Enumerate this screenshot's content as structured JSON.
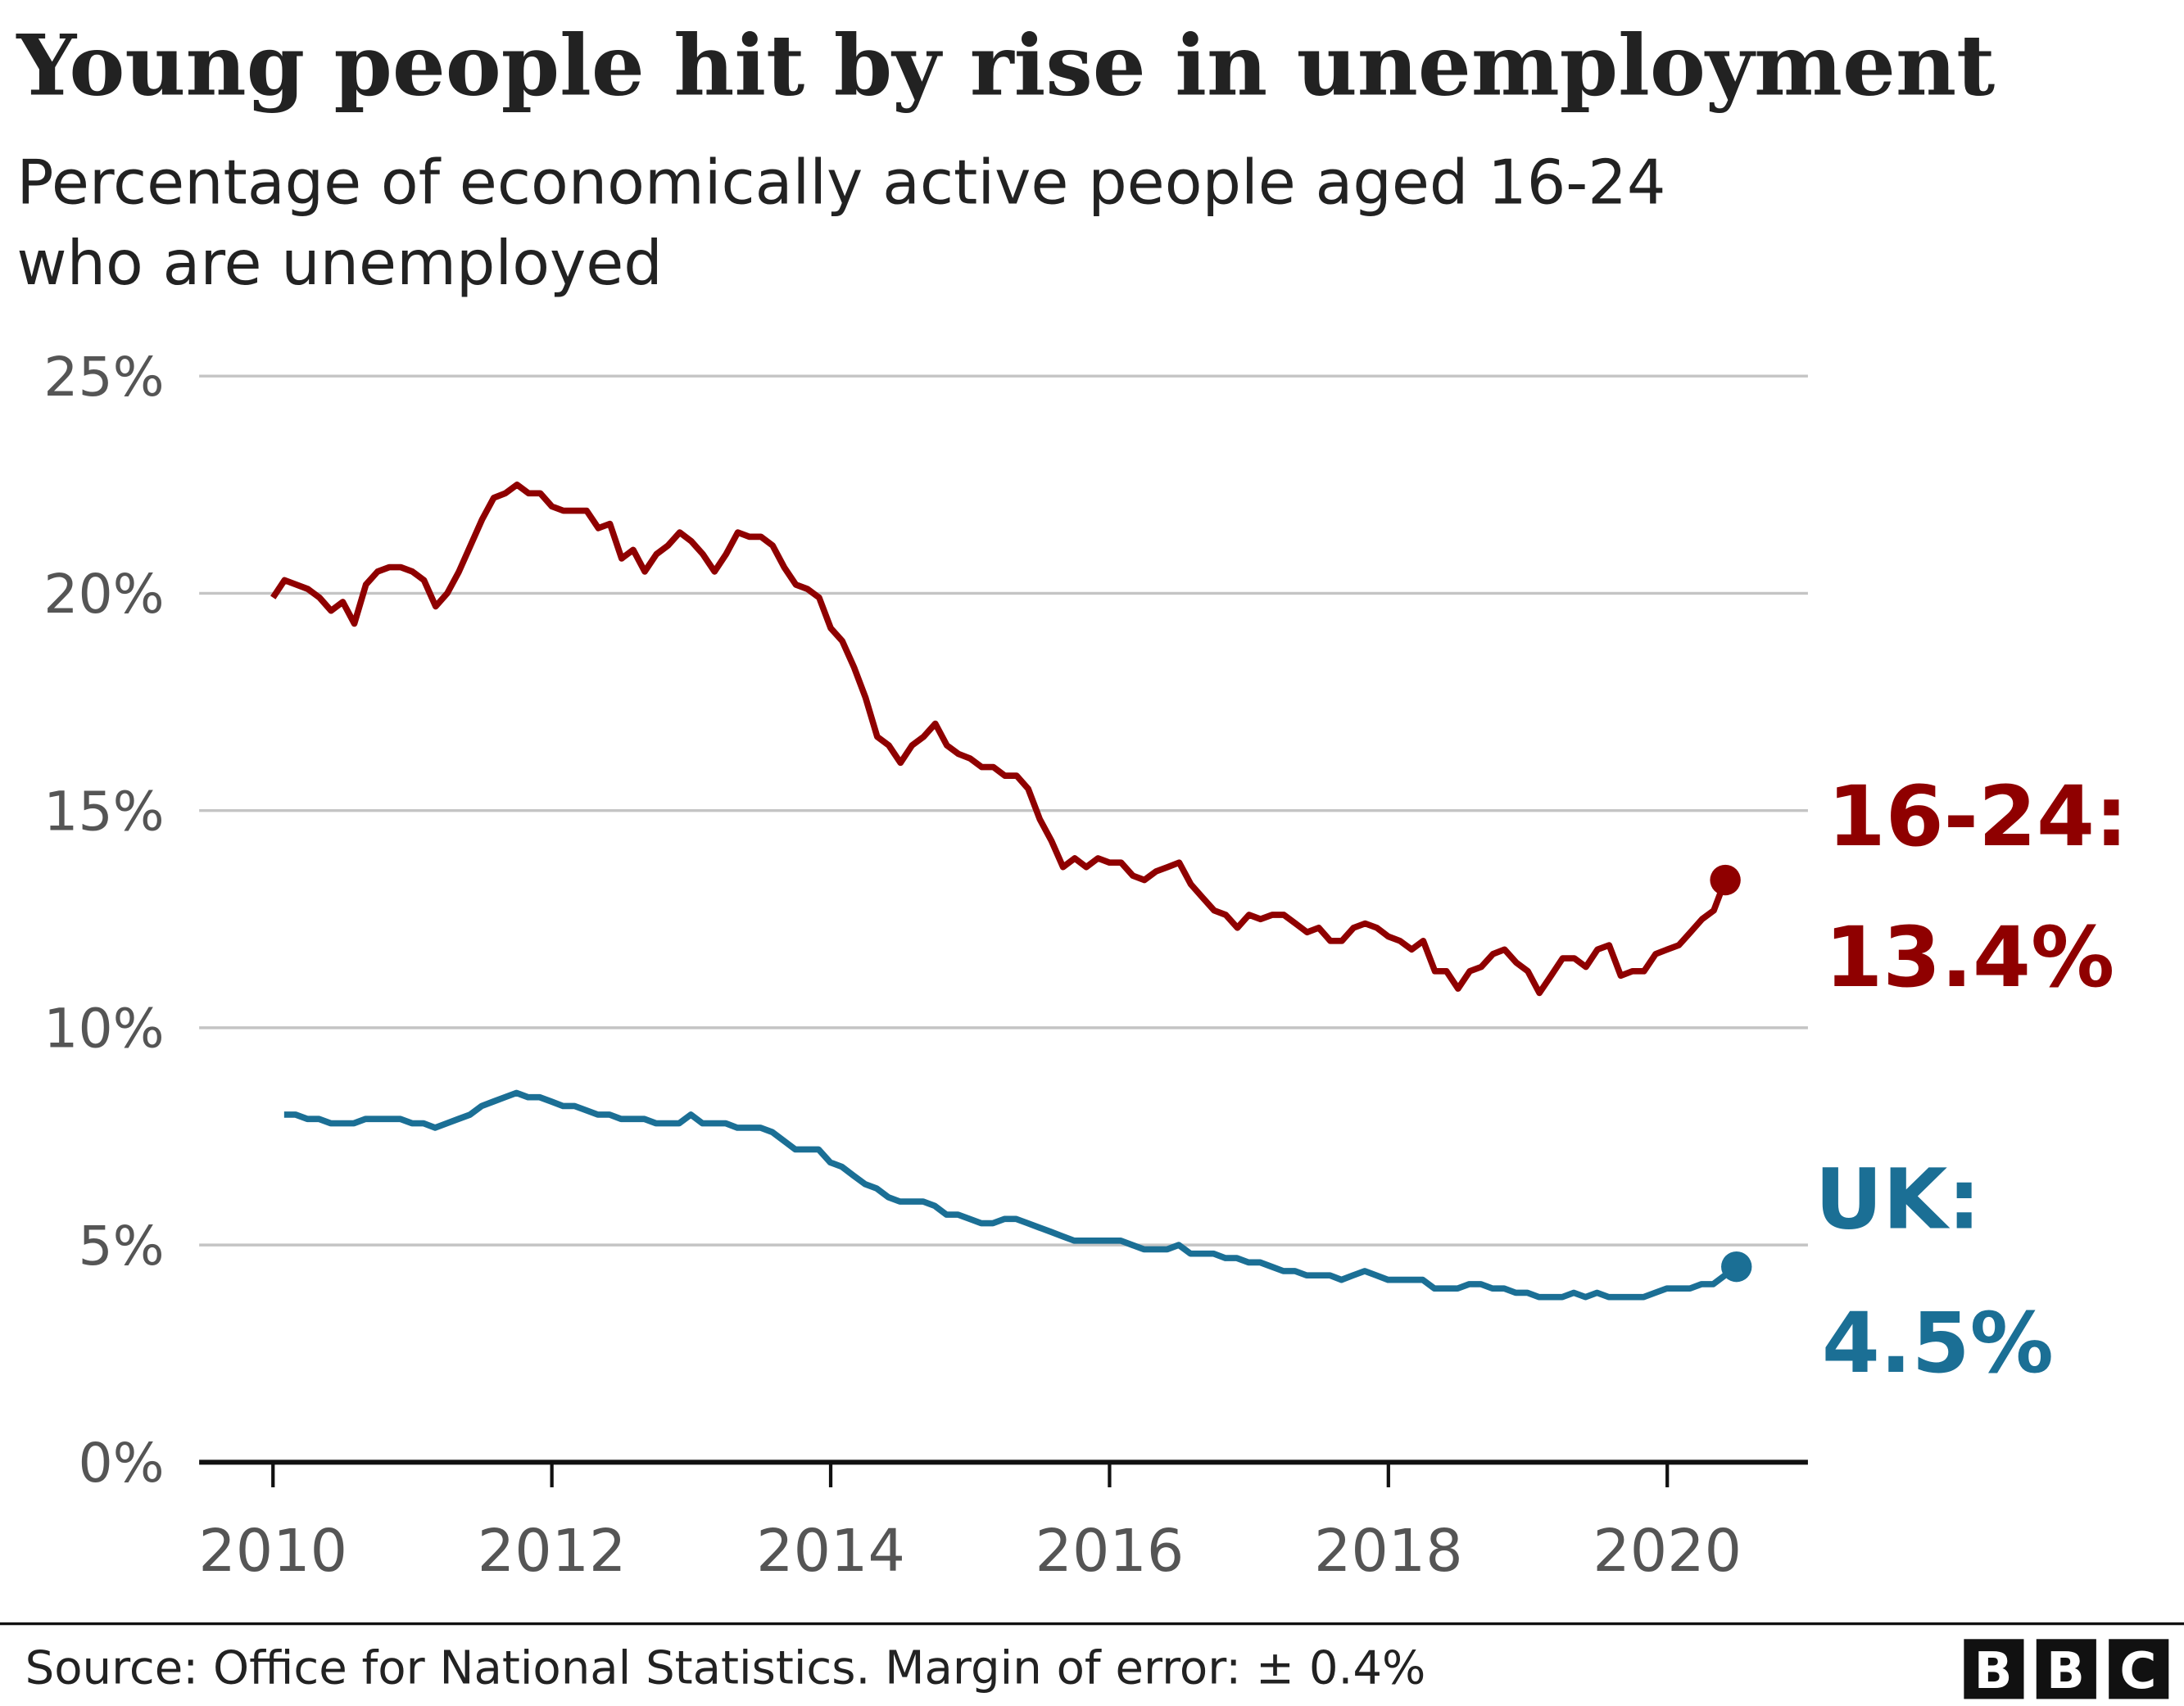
{
  "chart_data": {
    "type": "line",
    "title": "Young people hit by rise in unemployment",
    "subtitle": [
      "Percentage of economically active people aged 16-24",
      "who are unemployed"
    ],
    "xlabel": "",
    "ylabel": "",
    "xlim": [
      2010,
      2021
    ],
    "ylim": [
      0,
      25
    ],
    "yticks": [
      0,
      5,
      10,
      15,
      20,
      25
    ],
    "ytick_labels": [
      "0%",
      "5%",
      "10%",
      "15%",
      "20%",
      "25%"
    ],
    "xticks": [
      2010,
      2012,
      2014,
      2016,
      2018,
      2020
    ],
    "xtick_labels": [
      "2010",
      "2012",
      "2014",
      "2016",
      "2018",
      "2020"
    ],
    "grid": true,
    "series": [
      {
        "name": "16-24",
        "color": "#8f0000",
        "start_year": 2010.0,
        "step_months": 1,
        "values": [
          19.9,
          20.3,
          20.2,
          20.1,
          19.9,
          19.6,
          19.8,
          19.3,
          20.2,
          20.5,
          20.6,
          20.6,
          20.5,
          20.3,
          19.7,
          20.0,
          20.5,
          21.1,
          21.7,
          22.2,
          22.3,
          22.5,
          22.3,
          22.3,
          22.0,
          21.9,
          21.9,
          21.9,
          21.5,
          21.6,
          20.8,
          21.0,
          20.5,
          20.9,
          21.1,
          21.4,
          21.2,
          20.9,
          20.5,
          20.9,
          21.4,
          21.3,
          21.3,
          21.1,
          20.6,
          20.2,
          20.1,
          19.9,
          19.2,
          18.9,
          18.3,
          17.6,
          16.7,
          16.5,
          16.1,
          16.5,
          16.7,
          17.0,
          16.5,
          16.3,
          16.2,
          16.0,
          16.0,
          15.8,
          15.8,
          15.5,
          14.8,
          14.3,
          13.7,
          13.9,
          13.7,
          13.9,
          13.8,
          13.8,
          13.5,
          13.4,
          13.6,
          13.7,
          13.8,
          13.3,
          13.0,
          12.7,
          12.6,
          12.3,
          12.6,
          12.5,
          12.6,
          12.6,
          12.4,
          12.2,
          12.3,
          12.0,
          12.0,
          12.3,
          12.4,
          12.3,
          12.1,
          12.0,
          11.8,
          12.0,
          11.3,
          11.3,
          10.9,
          11.3,
          11.4,
          11.7,
          11.8,
          11.5,
          11.3,
          10.8,
          11.2,
          11.6,
          11.6,
          11.4,
          11.8,
          11.9,
          11.2,
          11.3,
          11.3,
          11.7,
          11.8,
          11.9,
          12.2,
          12.5,
          12.7,
          13.4
        ],
        "end_label": "16-24:",
        "end_value_label": "13.4%"
      },
      {
        "name": "UK",
        "color": "#1b6f95",
        "start_year": 2010.08,
        "step_months": 1,
        "values": [
          8.0,
          8.0,
          7.9,
          7.9,
          7.8,
          7.8,
          7.8,
          7.9,
          7.9,
          7.9,
          7.9,
          7.8,
          7.8,
          7.7,
          7.8,
          7.9,
          8.0,
          8.2,
          8.3,
          8.4,
          8.5,
          8.4,
          8.4,
          8.3,
          8.2,
          8.2,
          8.1,
          8.0,
          8.0,
          7.9,
          7.9,
          7.9,
          7.8,
          7.8,
          7.8,
          8.0,
          7.8,
          7.8,
          7.8,
          7.7,
          7.7,
          7.7,
          7.6,
          7.4,
          7.2,
          7.2,
          7.2,
          6.9,
          6.8,
          6.6,
          6.4,
          6.3,
          6.1,
          6.0,
          6.0,
          6.0,
          5.9,
          5.7,
          5.7,
          5.6,
          5.5,
          5.5,
          5.6,
          5.6,
          5.5,
          5.4,
          5.3,
          5.2,
          5.1,
          5.1,
          5.1,
          5.1,
          5.1,
          5.0,
          4.9,
          4.9,
          4.9,
          5.0,
          4.8,
          4.8,
          4.8,
          4.7,
          4.7,
          4.6,
          4.6,
          4.5,
          4.4,
          4.4,
          4.3,
          4.3,
          4.3,
          4.2,
          4.3,
          4.4,
          4.3,
          4.2,
          4.2,
          4.2,
          4.2,
          4.0,
          4.0,
          4.0,
          4.1,
          4.1,
          4.0,
          4.0,
          3.9,
          3.9,
          3.8,
          3.8,
          3.8,
          3.9,
          3.8,
          3.9,
          3.8,
          3.8,
          3.8,
          3.8,
          3.9,
          4.0,
          4.0,
          4.0,
          4.1,
          4.1,
          4.3,
          4.5
        ],
        "end_label": "UK:",
        "end_value_label": "4.5%"
      }
    ]
  },
  "footer": {
    "source": "Source: Office for National Statistics. Margin of error: ± 0.4%",
    "logo": [
      "B",
      "B",
      "C"
    ]
  }
}
